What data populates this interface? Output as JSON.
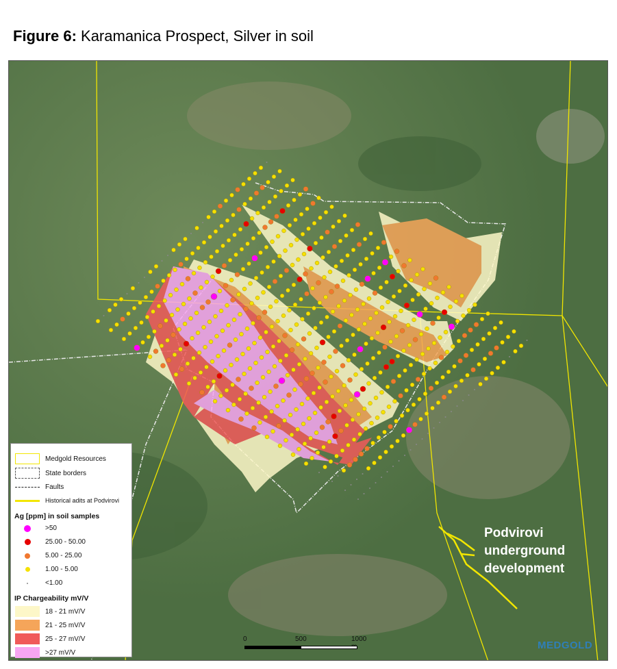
{
  "title": {
    "prefix": "Figure 6:",
    "text": " Karamanica Prospect, Silver in soil"
  },
  "annotation": {
    "lines": [
      "Podvirovi",
      "underground",
      "development"
    ]
  },
  "legend": {
    "items": [
      {
        "label": "Medgold Resources",
        "kind": "box",
        "color": "#f2e600"
      },
      {
        "label": "State borders",
        "kind": "dashbox",
        "color": "#555555"
      },
      {
        "label": "Faults",
        "kind": "dash",
        "color": "#222222"
      },
      {
        "label": "Historical adits at Podvirovi",
        "kind": "line",
        "color": "#f2e600"
      }
    ],
    "ag_title": "Ag [ppm] in soil samples",
    "ag_classes": [
      {
        "label": ">50",
        "color": "#ff00ff"
      },
      {
        "label": "25.00 - 50.00",
        "color": "#e60000"
      },
      {
        "label": "5.00 - 25.00",
        "color": "#f07830"
      },
      {
        "label": "1.00 - 5.00",
        "color": "#f5e100"
      },
      {
        "label": "<1.00",
        "color": "#888888"
      }
    ],
    "ip_title": "IP Chargeability mV/V",
    "ip_classes": [
      {
        "label": "18 - 21 mV/V",
        "color": "#fdf7c8"
      },
      {
        "label": "21 - 25 mV/V",
        "color": "#f5a55a"
      },
      {
        "label": "25 - 27 mV/V",
        "color": "#f05a5a"
      },
      {
        "label": ">27 mV/V",
        "color": "#f7a6f2"
      }
    ]
  },
  "scale_bar": {
    "labels": [
      "0",
      "500",
      "1000 m"
    ]
  },
  "logo": "MEDGOLD"
}
